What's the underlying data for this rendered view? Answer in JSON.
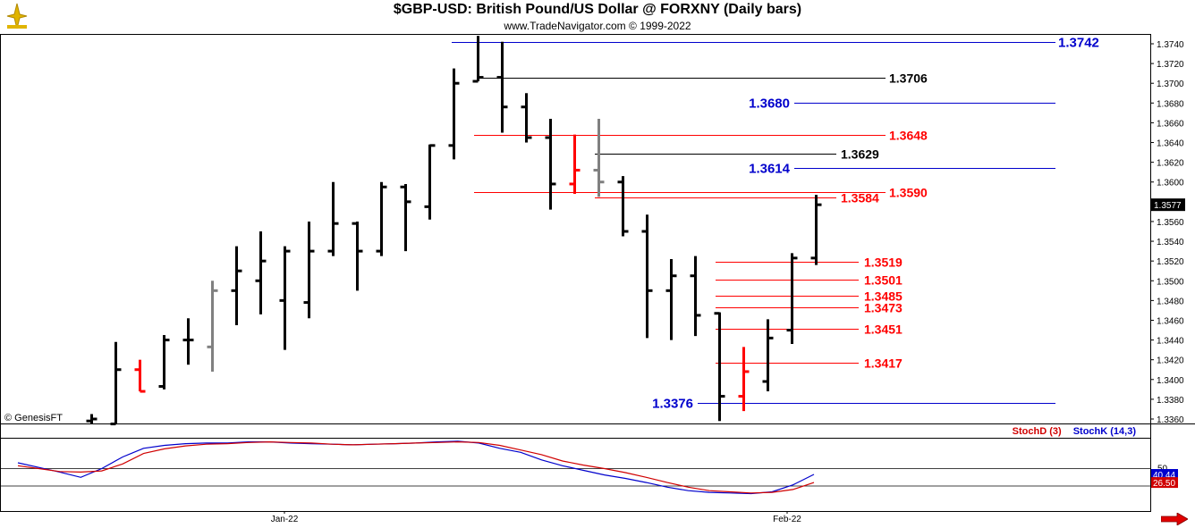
{
  "header": {
    "title": "$GBP-USD:  British Pound/US Dollar @ FORXNY  (Daily bars)",
    "subtitle": "www.TradeNavigator.com © 1999-2022"
  },
  "footer": {
    "copyright": "© GenesisFT",
    "stoch_d_label": "StochD (3)",
    "stoch_k_label": "StochK (14,3)"
  },
  "colors": {
    "up_bar": "#000000",
    "down_bar": "#ff0000",
    "neutral_bar": "#808080",
    "level_blue": "#0000cc",
    "level_red": "#ff0000",
    "level_black": "#000000",
    "stoch_k": "#0000cc",
    "stoch_d": "#d00000"
  },
  "chart_data": [
    {
      "type": "ohlc",
      "title": "$GBP-USD:  British Pound/US Dollar @ FORXNY  (Daily bars)",
      "ylim": [
        1.335,
        1.375
      ],
      "y_ticks": [
        "1.3740",
        "1.3720",
        "1.3700",
        "1.3680",
        "1.3660",
        "1.3640",
        "1.3620",
        "1.3600",
        "1.3580",
        "1.3560",
        "1.3540",
        "1.3520",
        "1.3500",
        "1.3480",
        "1.3460",
        "1.3440",
        "1.3420",
        "1.3400",
        "1.3380",
        "1.3360"
      ],
      "x_labels": [
        "Jan-22",
        "Feb-22"
      ],
      "last_price": "1.3577",
      "bars": [
        {
          "o": 1.3358,
          "h": 1.3365,
          "l": 1.335,
          "c": 1.336,
          "color": "up"
        },
        {
          "o": 1.3355,
          "h": 1.3438,
          "l": 1.3352,
          "c": 1.341,
          "color": "up"
        },
        {
          "o": 1.341,
          "h": 1.342,
          "l": 1.3388,
          "c": 1.3388,
          "color": "down"
        },
        {
          "o": 1.3393,
          "h": 1.3445,
          "l": 1.339,
          "c": 1.344,
          "color": "up"
        },
        {
          "o": 1.344,
          "h": 1.3462,
          "l": 1.3415,
          "c": 1.344,
          "color": "up"
        },
        {
          "o": 1.3433,
          "h": 1.35,
          "l": 1.3408,
          "c": 1.349,
          "color": "neutral"
        },
        {
          "o": 1.349,
          "h": 1.3535,
          "l": 1.3455,
          "c": 1.351,
          "color": "up"
        },
        {
          "o": 1.35,
          "h": 1.355,
          "l": 1.3466,
          "c": 1.352,
          "color": "up"
        },
        {
          "o": 1.348,
          "h": 1.3535,
          "l": 1.343,
          "c": 1.353,
          "color": "up"
        },
        {
          "o": 1.3478,
          "h": 1.356,
          "l": 1.3462,
          "c": 1.353,
          "color": "up"
        },
        {
          "o": 1.353,
          "h": 1.36,
          "l": 1.3525,
          "c": 1.3558,
          "color": "up"
        },
        {
          "o": 1.3558,
          "h": 1.356,
          "l": 1.349,
          "c": 1.353,
          "color": "up"
        },
        {
          "o": 1.353,
          "h": 1.36,
          "l": 1.3525,
          "c": 1.3595,
          "color": "up"
        },
        {
          "o": 1.3595,
          "h": 1.3598,
          "l": 1.353,
          "c": 1.358,
          "color": "up"
        },
        {
          "o": 1.3575,
          "h": 1.3638,
          "l": 1.3562,
          "c": 1.3637,
          "color": "up"
        },
        {
          "o": 1.3637,
          "h": 1.3715,
          "l": 1.3623,
          "c": 1.37,
          "color": "up"
        },
        {
          "o": 1.3702,
          "h": 1.3748,
          "l": 1.3702,
          "c": 1.3706,
          "color": "up"
        },
        {
          "o": 1.3706,
          "h": 1.3742,
          "l": 1.365,
          "c": 1.3676,
          "color": "up"
        },
        {
          "o": 1.3676,
          "h": 1.369,
          "l": 1.364,
          "c": 1.3645,
          "color": "up"
        },
        {
          "o": 1.3645,
          "h": 1.3664,
          "l": 1.3572,
          "c": 1.3598,
          "color": "up"
        },
        {
          "o": 1.3598,
          "h": 1.3648,
          "l": 1.3588,
          "c": 1.3612,
          "color": "down"
        },
        {
          "o": 1.3612,
          "h": 1.3664,
          "l": 1.3585,
          "c": 1.36,
          "color": "neutral"
        },
        {
          "o": 1.36,
          "h": 1.3606,
          "l": 1.3545,
          "c": 1.355,
          "color": "up"
        },
        {
          "o": 1.355,
          "h": 1.3567,
          "l": 1.3442,
          "c": 1.349,
          "color": "up"
        },
        {
          "o": 1.349,
          "h": 1.3522,
          "l": 1.344,
          "c": 1.3505,
          "color": "up"
        },
        {
          "o": 1.3505,
          "h": 1.3525,
          "l": 1.3444,
          "c": 1.3465,
          "color": "up"
        },
        {
          "o": 1.3467,
          "h": 1.3468,
          "l": 1.3358,
          "c": 1.3383,
          "color": "up"
        },
        {
          "o": 1.3383,
          "h": 1.3433,
          "l": 1.3368,
          "c": 1.3408,
          "color": "down"
        },
        {
          "o": 1.3398,
          "h": 1.3461,
          "l": 1.3388,
          "c": 1.3442,
          "color": "up"
        },
        {
          "o": 1.345,
          "h": 1.3528,
          "l": 1.3436,
          "c": 1.3523,
          "color": "up"
        },
        {
          "o": 1.3523,
          "h": 1.3587,
          "l": 1.3516,
          "c": 1.3577,
          "color": "up"
        }
      ],
      "levels": [
        {
          "value": 1.3742,
          "label": "1.3742",
          "color": "blue",
          "label_side": "right"
        },
        {
          "value": 1.3706,
          "label": "1.3706",
          "color": "black",
          "label_side": "right"
        },
        {
          "value": 1.368,
          "label": "1.3680",
          "color": "blue",
          "label_side": "left"
        },
        {
          "value": 1.3648,
          "label": "1.3648",
          "color": "red",
          "label_side": "right"
        },
        {
          "value": 1.3629,
          "label": "1.3629",
          "color": "black",
          "label_side": "right"
        },
        {
          "value": 1.3614,
          "label": "1.3614",
          "color": "blue",
          "label_side": "left"
        },
        {
          "value": 1.359,
          "label": "1.3590",
          "color": "red",
          "label_side": "right"
        },
        {
          "value": 1.3584,
          "label": "1.3584",
          "color": "red",
          "label_side": "right"
        },
        {
          "value": 1.3519,
          "label": "1.3519",
          "color": "red",
          "label_side": "right"
        },
        {
          "value": 1.3501,
          "label": "1.3501",
          "color": "red",
          "label_side": "right"
        },
        {
          "value": 1.3485,
          "label": "1.3485",
          "color": "red",
          "label_side": "right"
        },
        {
          "value": 1.3473,
          "label": "1.3473",
          "color": "red",
          "label_side": "right"
        },
        {
          "value": 1.3451,
          "label": "1.3451",
          "color": "red",
          "label_side": "right"
        },
        {
          "value": 1.3417,
          "label": "1.3417",
          "color": "red",
          "label_side": "right"
        },
        {
          "value": 1.3376,
          "label": "1.3376",
          "color": "blue",
          "label_side": "left"
        }
      ]
    },
    {
      "type": "line",
      "title": "",
      "ylim": [
        0,
        100
      ],
      "y_ticks": [
        "50"
      ],
      "series": [
        {
          "name": "StochK (14,3)",
          "color": "blue",
          "last_label": "40.44",
          "values": [
            60,
            52,
            44,
            35,
            50,
            70,
            85,
            90,
            93,
            94,
            94,
            96,
            96,
            94,
            93,
            92,
            91,
            92,
            93,
            94,
            96,
            97,
            94,
            85,
            78,
            65,
            55,
            47,
            39,
            33,
            26,
            18,
            12,
            9,
            8,
            7,
            10,
            22,
            40
          ]
        },
        {
          "name": "StochD (3)",
          "color": "red",
          "last_label": "26.50",
          "values": [
            55,
            50,
            45,
            44,
            46,
            58,
            76,
            84,
            89,
            92,
            93,
            95,
            96,
            95,
            94,
            92,
            91,
            92,
            93,
            94,
            95,
            96,
            95,
            90,
            82,
            74,
            63,
            56,
            50,
            43,
            35,
            26,
            18,
            12,
            10,
            8,
            9,
            14,
            26
          ]
        }
      ]
    }
  ]
}
